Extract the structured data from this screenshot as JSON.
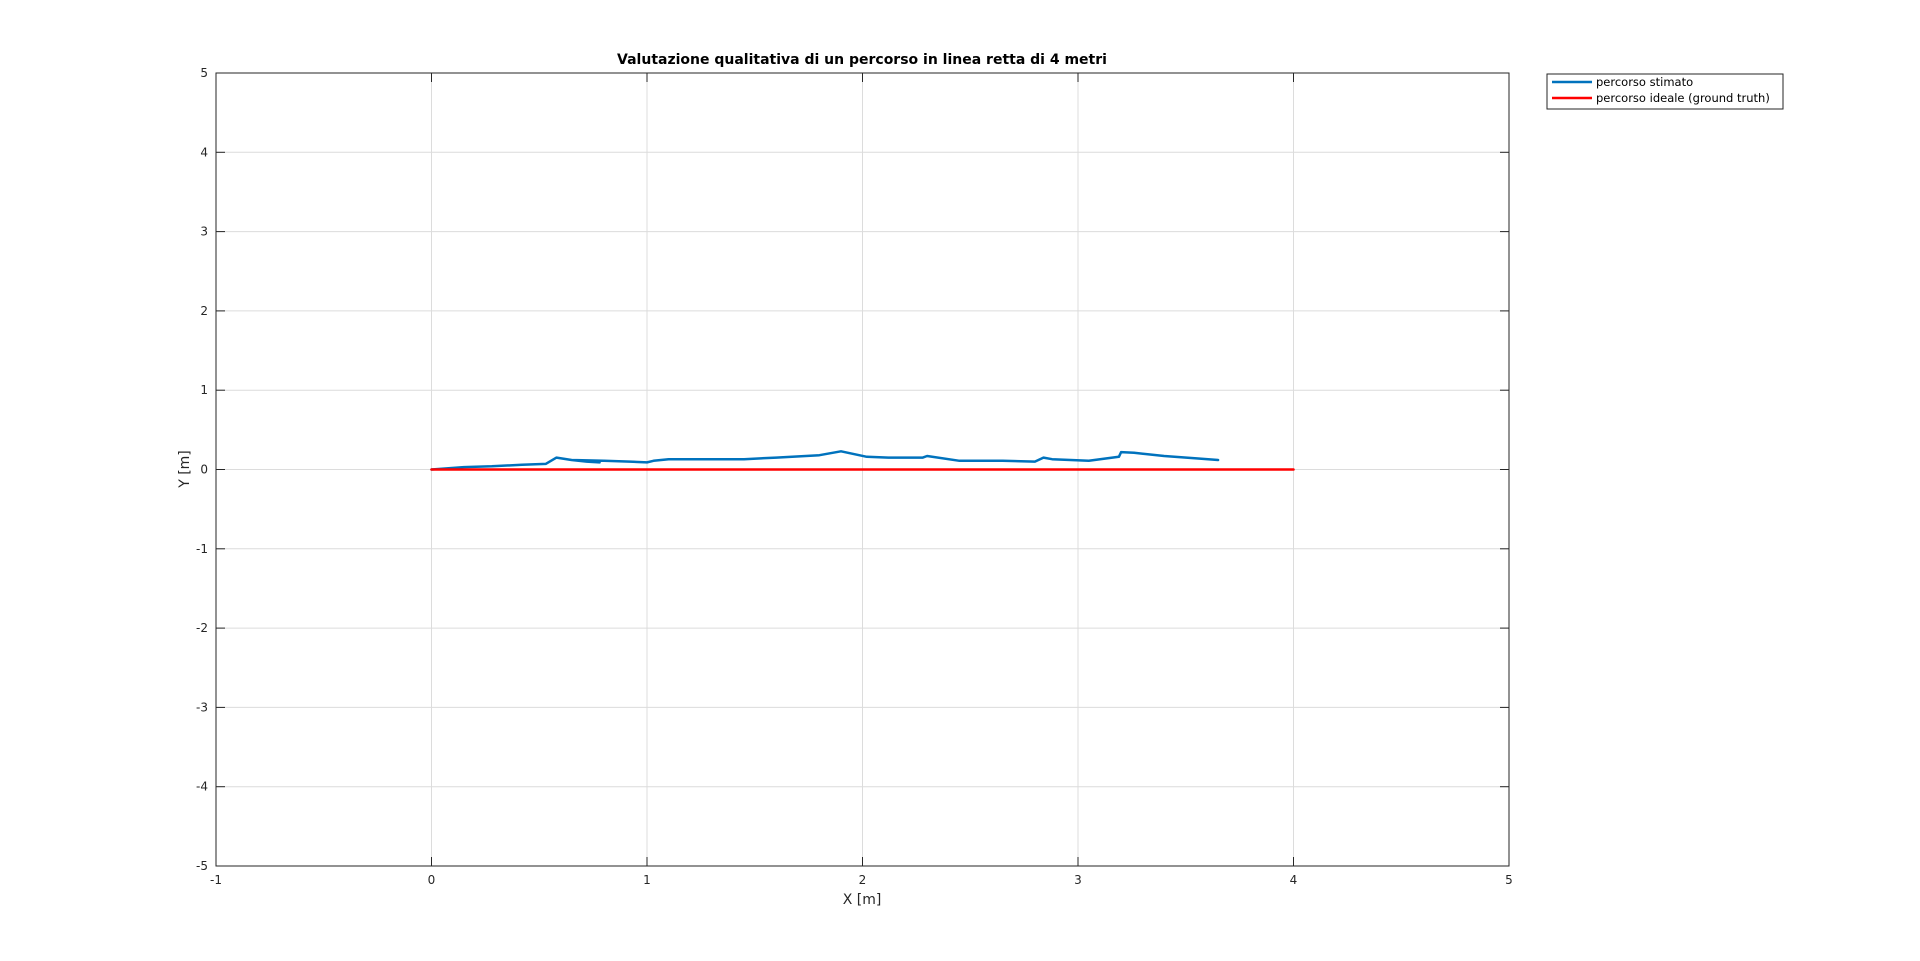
{
  "chart_data": {
    "type": "line",
    "title": "Valutazione qualitativa di un percorso in linea retta di 4 metri",
    "xlabel": "X [m]",
    "ylabel": "Y [m]",
    "xlim": [
      -1,
      5
    ],
    "ylim": [
      -5,
      5
    ],
    "xticks": [
      -1,
      0,
      1,
      2,
      3,
      4,
      5
    ],
    "yticks": [
      -5,
      -4,
      -3,
      -2,
      -1,
      0,
      1,
      2,
      3,
      4,
      5
    ],
    "xtick_labels": [
      "-1",
      "0",
      "1",
      "2",
      "3",
      "4",
      "5"
    ],
    "ytick_labels": [
      "-5",
      "-4",
      "-3",
      "-2",
      "-1",
      "0",
      "1",
      "2",
      "3",
      "4",
      "5"
    ],
    "grid": true,
    "legend_position": "outside-top-right",
    "series": [
      {
        "name": "percorso stimato",
        "color": "#0072BD",
        "x": [
          0,
          0.15,
          0.28,
          0.42,
          0.53,
          0.58,
          0.65,
          0.72,
          0.78,
          0.72,
          0.65,
          0.8,
          0.92,
          1.0,
          1.03,
          1.1,
          1.25,
          1.45,
          1.6,
          1.8,
          1.9,
          2.02,
          2.12,
          2.28,
          2.3,
          2.45,
          2.65,
          2.8,
          2.84,
          2.88,
          3.05,
          3.19,
          3.2,
          3.26,
          3.4,
          3.55,
          3.65
        ],
        "y": [
          0,
          0.03,
          0.04,
          0.06,
          0.07,
          0.15,
          0.12,
          0.1,
          0.09,
          0.1,
          0.12,
          0.11,
          0.1,
          0.09,
          0.11,
          0.13,
          0.13,
          0.13,
          0.15,
          0.18,
          0.23,
          0.16,
          0.15,
          0.15,
          0.17,
          0.11,
          0.11,
          0.1,
          0.15,
          0.13,
          0.11,
          0.16,
          0.22,
          0.21,
          0.17,
          0.14,
          0.12
        ]
      },
      {
        "name": "percorso ideale (ground truth)",
        "color": "#FF0000",
        "x": [
          0,
          4
        ],
        "y": [
          0,
          0
        ]
      }
    ]
  }
}
